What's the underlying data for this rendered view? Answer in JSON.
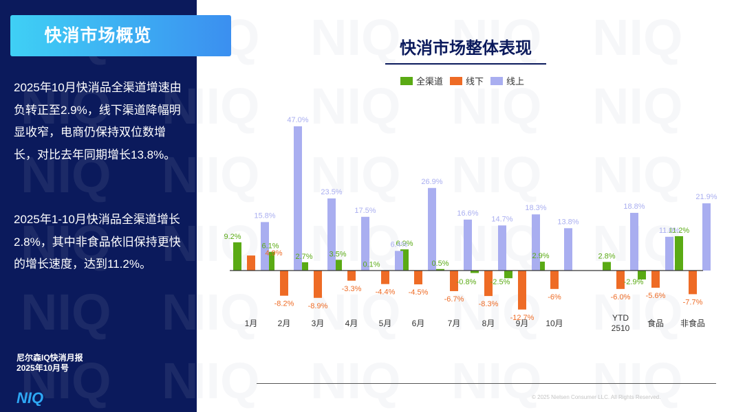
{
  "sidebar": {
    "title": "快消市场概览",
    "paragraph1": "2025年10月快消品全渠道增速由负转正至2.9%，线下渠道降幅明显收窄，电商仍保持双位数增长，对比去年同期增长13.8%。",
    "paragraph2": "2025年1-10月快消品全渠道增长2.8%，其中非食品依旧保持更快的增长速度，达到11.2%。",
    "report_line1": "尼尔森IQ快消月报",
    "report_line2": "2025年10月号",
    "logo_text": "NIQ",
    "watermark_text": "NIQ"
  },
  "chart_data": {
    "type": "bar",
    "title": "快消市场整体表现",
    "categories": [
      "1月",
      "2月",
      "3月",
      "4月",
      "5月",
      "6月",
      "7月",
      "8月",
      "9月",
      "10月",
      "YTD 2510",
      "食品",
      "非食品"
    ],
    "series": [
      {
        "name": "全渠道",
        "color": "#5aaa14",
        "values": [
          9.2,
          6.1,
          2.7,
          3.5,
          0.1,
          6.9,
          0.5,
          -0.8,
          -2.5,
          2.9,
          2.8,
          -2.9,
          11.2
        ]
      },
      {
        "name": "线下",
        "color": "#ee6b25",
        "values": [
          4.9,
          -8.2,
          -8.9,
          -3.3,
          -4.4,
          -4.5,
          -6.7,
          -8.3,
          -12.7,
          -6,
          -6.0,
          -5.6,
          -7.7
        ]
      },
      {
        "name": "线上",
        "color": "#a9aef0",
        "values": [
          15.8,
          47.0,
          23.5,
          17.5,
          6.4,
          26.9,
          16.6,
          14.7,
          18.3,
          13.8,
          18.8,
          11.0,
          21.9
        ]
      }
    ],
    "labels": [
      [
        "9.2%",
        "6.1%",
        "2.7%",
        "3.5%",
        "0.1%",
        "6.9%",
        "0.5%",
        "-0.8%",
        "-2.5%",
        "2.9%",
        "2.8%",
        "-2.9%",
        "11.2%"
      ],
      [
        "",
        "-8.2%",
        "-8.9%",
        "-3.3%",
        "-4.4%",
        "-4.5%",
        "-6.7%",
        "-8.3%",
        "-12.7%",
        "-6%",
        "-6.0%",
        "-5.6%",
        "-7.7%"
      ],
      [
        "15.8%",
        "47.0%",
        "23.5%",
        "17.5%",
        "6.4%",
        "26.9%",
        "16.6%",
        "14.7%",
        "18.3%",
        "13.8%",
        "18.8%",
        "11.0%",
        "21.9%"
      ]
    ],
    "callout": "4.9%",
    "legend_position": "top",
    "grid": false
  },
  "footer": {
    "copyright": "© 2025 Nielsen Consumer LLC. All Rights Reserved."
  }
}
